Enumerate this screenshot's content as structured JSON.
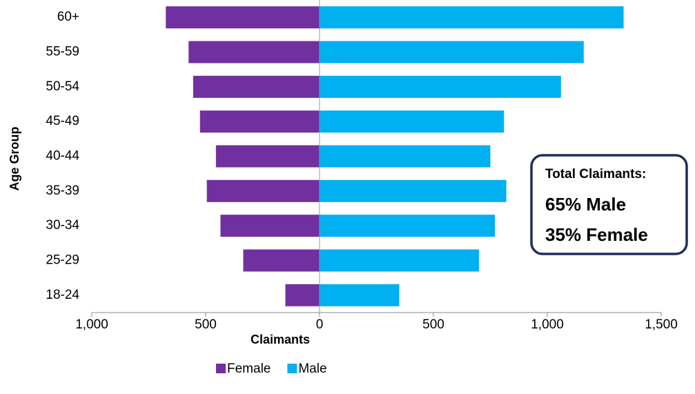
{
  "chart_data": {
    "type": "bar",
    "orientation": "horizontal",
    "y_label": "Age Group",
    "x_label": "Claimants",
    "categories": [
      "18-24",
      "25-29",
      "30-34",
      "35-39",
      "40-44",
      "45-49",
      "50-54",
      "55-59",
      "60+"
    ],
    "series": [
      {
        "name": "Female",
        "color": "#7030a0",
        "values": [
          -150,
          -335,
          -435,
          -495,
          -455,
          -525,
          -555,
          -575,
          -675
        ]
      },
      {
        "name": "Male",
        "color": "#00b0f0",
        "values": [
          350,
          700,
          770,
          820,
          750,
          810,
          1060,
          1160,
          1335
        ]
      }
    ],
    "xlim": [
      -1000,
      1500
    ],
    "xticks": [
      {
        "value": -1000,
        "label": "1,000"
      },
      {
        "value": -500,
        "label": "500"
      },
      0,
      500,
      {
        "value": 1000,
        "label": "1,000"
      },
      {
        "value": 1500,
        "label": "1,500"
      }
    ],
    "legend": "bottom",
    "annotation": {
      "lines": [
        {
          "text": "Total Claimants:",
          "color": "#1f2d5a"
        },
        {
          "text": "65% Male",
          "color": "#00b0f0"
        },
        {
          "text": "35% Female",
          "color": "#7030a0"
        }
      ]
    }
  }
}
